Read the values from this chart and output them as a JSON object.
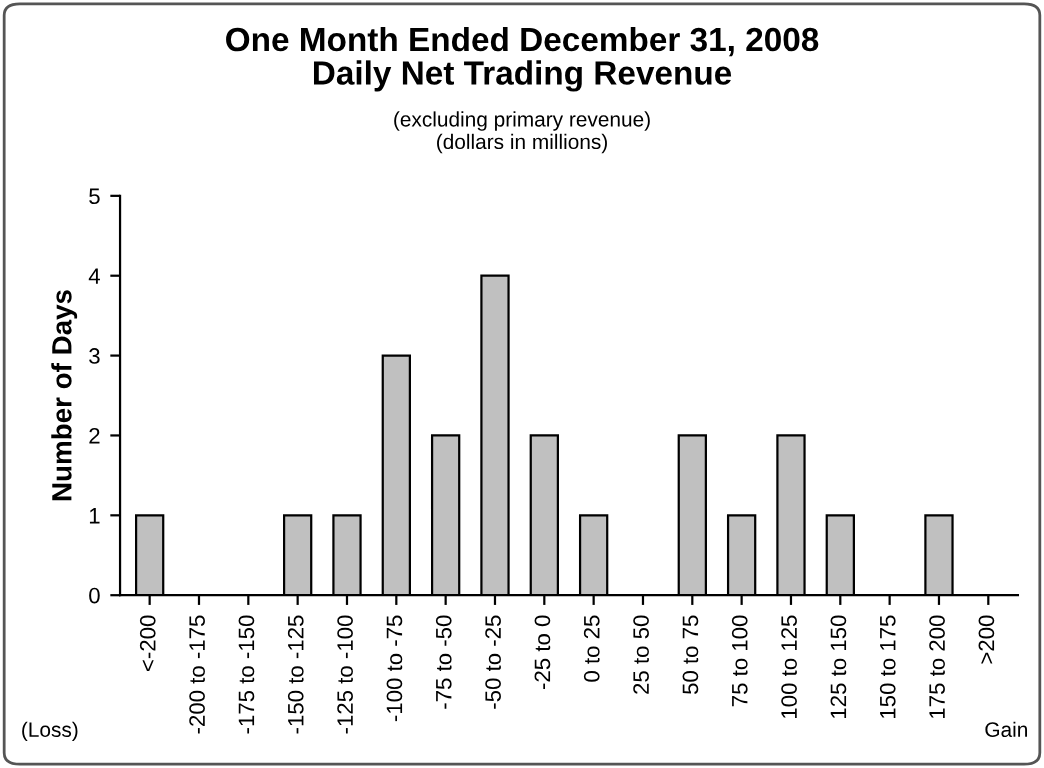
{
  "chart_data": {
    "type": "bar",
    "title": "One Month Ended December 31, 2008\nDaily Net Trading Revenue",
    "subtitle": "(excluding primary revenue)\n(dollars in millions)",
    "ylabel": "Number of Days",
    "categories": [
      "<-200",
      "-200 to -175",
      "-175 to -150",
      "-150 to -125",
      "-125 to -100",
      "-100 to -75",
      "-75 to -50",
      "-50 to -25",
      "-25 to 0",
      "0 to 25",
      "25 to 50",
      "50 to 75",
      "75 to 100",
      "100 to 125",
      "125 to 150",
      "150 to 175",
      "175 to 200",
      ">200"
    ],
    "values": [
      1,
      0,
      0,
      1,
      1,
      3,
      2,
      4,
      2,
      1,
      0,
      2,
      1,
      2,
      1,
      0,
      1,
      0
    ],
    "color": "#c0c0c0",
    "ylim": [
      0,
      5
    ],
    "yticks": [
      0,
      1,
      2,
      3,
      4,
      5
    ],
    "grid": false,
    "legend": false,
    "annotations": [
      "(Loss)",
      "Gain"
    ]
  }
}
